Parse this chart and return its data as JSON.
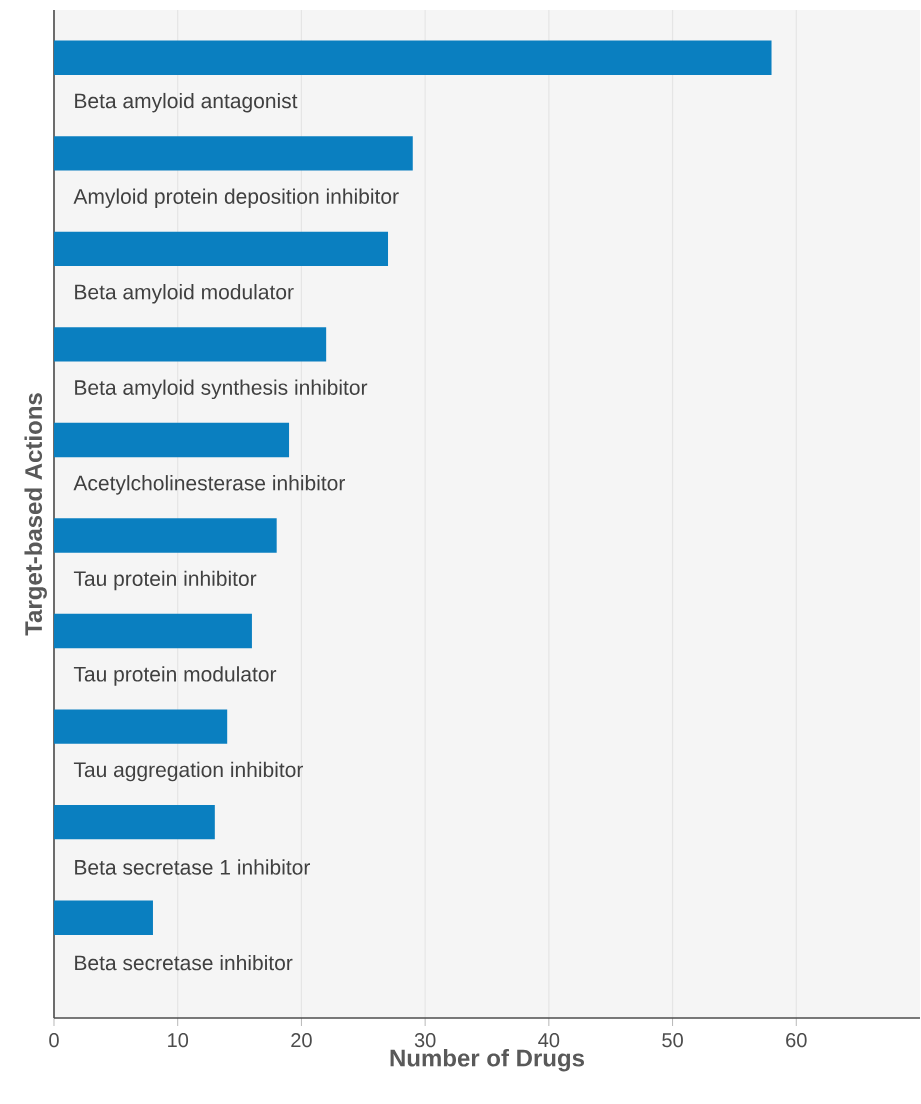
{
  "chart_data": {
    "type": "bar",
    "orientation": "horizontal",
    "xlabel": "Number of Drugs",
    "ylabel": "Target-based Actions",
    "categories": [
      "Beta amyloid antagonist",
      "Amyloid protein deposition inhibitor",
      "Beta amyloid modulator",
      "Beta amyloid synthesis inhibitor",
      "Acetylcholinesterase inhibitor",
      "Tau protein inhibitor",
      "Tau protein modulator",
      "Tau aggregation inhibitor",
      "Beta secretase 1 inhibitor",
      "Beta secretase inhibitor"
    ],
    "values": [
      58,
      29,
      27,
      22,
      19,
      18,
      16,
      14,
      13,
      8
    ],
    "color": "#0a7fc0",
    "xlim": [
      0,
      70
    ],
    "xticks": [
      0,
      10,
      20,
      30,
      40,
      50,
      60
    ],
    "grid": "x"
  }
}
